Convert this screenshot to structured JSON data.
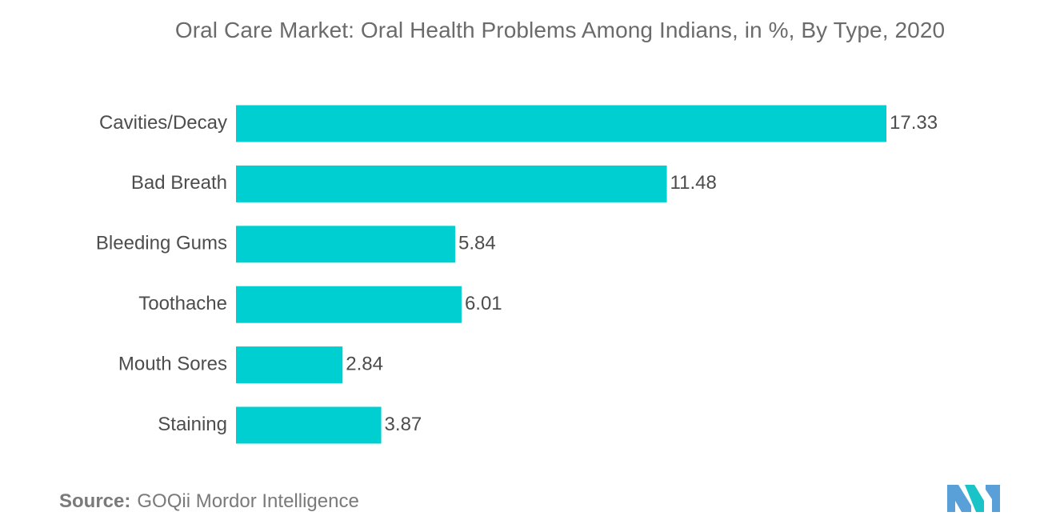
{
  "chart_data": {
    "type": "bar",
    "orientation": "horizontal",
    "title": "Oral Care Market: Oral Health Problems Among Indians, in %, By Type, 2020",
    "categories": [
      "Cavities/Decay",
      "Bad Breath",
      "Bleeding Gums",
      "Toothache",
      "Mouth Sores",
      "Staining"
    ],
    "values": [
      17.33,
      11.48,
      5.84,
      6.01,
      2.84,
      3.87
    ],
    "value_labels": [
      "17.33",
      "11.48",
      "5.84",
      "6.01",
      "2.84",
      "3.87"
    ],
    "xlim": [
      0,
      17.33
    ],
    "grid": false,
    "legend": "none",
    "bar_color": "#00cfd1"
  },
  "source": {
    "label": "Source:",
    "text": "GOQii Mordor Intelligence"
  },
  "logo": {
    "icon": "mordor-intelligence-logo-icon",
    "colors": [
      "#5aa0d8",
      "#19c3c8"
    ]
  }
}
